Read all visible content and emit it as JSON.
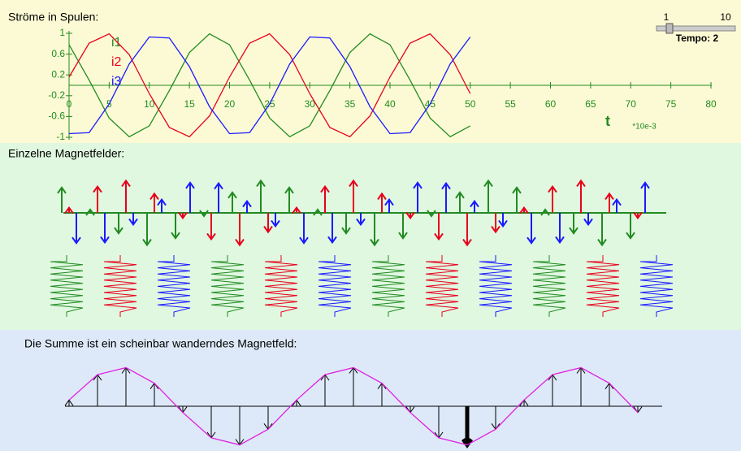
{
  "chart_data": {
    "type": "line",
    "title": "Ströme in Spulen:",
    "xlabel": "t",
    "xunit": "*10e-3",
    "xlim": [
      0,
      80
    ],
    "xticks": [
      0,
      5,
      10,
      15,
      20,
      25,
      30,
      35,
      40,
      45,
      50,
      55,
      60,
      65,
      70,
      75,
      80
    ],
    "ylim": [
      -1,
      1
    ],
    "yticks": [
      1,
      0.6,
      0.2,
      -0.2,
      -0.6,
      -1
    ],
    "x": [
      0,
      2.5,
      5,
      7.5,
      10,
      12.5,
      15,
      17.5,
      20,
      22.5,
      25,
      27.5,
      30,
      32.5,
      35,
      37.5,
      40,
      42.5,
      45,
      47.5,
      50
    ],
    "series": [
      {
        "name": "i1",
        "color": "#228b22",
        "values": [
          0.78,
          0.1,
          -0.63,
          -0.99,
          -0.78,
          -0.1,
          0.63,
          0.99,
          0.78,
          0.1,
          -0.63,
          -0.99,
          -0.78,
          -0.1,
          0.63,
          0.99,
          0.78,
          0.1,
          -0.63,
          -0.99,
          -0.78
        ]
      },
      {
        "name": "i2",
        "color": "#e8001c",
        "values": [
          0.16,
          0.81,
          0.99,
          0.59,
          -0.16,
          -0.81,
          -0.99,
          -0.59,
          0.16,
          0.81,
          0.99,
          0.59,
          -0.16,
          -0.81,
          -0.99,
          -0.59,
          0.16,
          0.81,
          0.99,
          0.59,
          -0.16
        ]
      },
      {
        "name": "i3",
        "color": "#1a1aff",
        "values": [
          -0.93,
          -0.91,
          -0.36,
          0.41,
          0.93,
          0.91,
          0.36,
          -0.41,
          -0.93,
          -0.91,
          -0.36,
          0.41,
          0.93,
          0.91,
          0.36,
          -0.41,
          -0.93,
          -0.91,
          -0.36,
          0.41,
          0.93
        ]
      }
    ]
  },
  "slider": {
    "min_label": "1",
    "max_label": "10",
    "label": "Tempo: 2"
  },
  "panels": {
    "fields_title": "Einzelne Magnetfelder:",
    "sum_title": "Die Summe ist ein scheinbar wanderndes Magnetfeld:"
  }
}
